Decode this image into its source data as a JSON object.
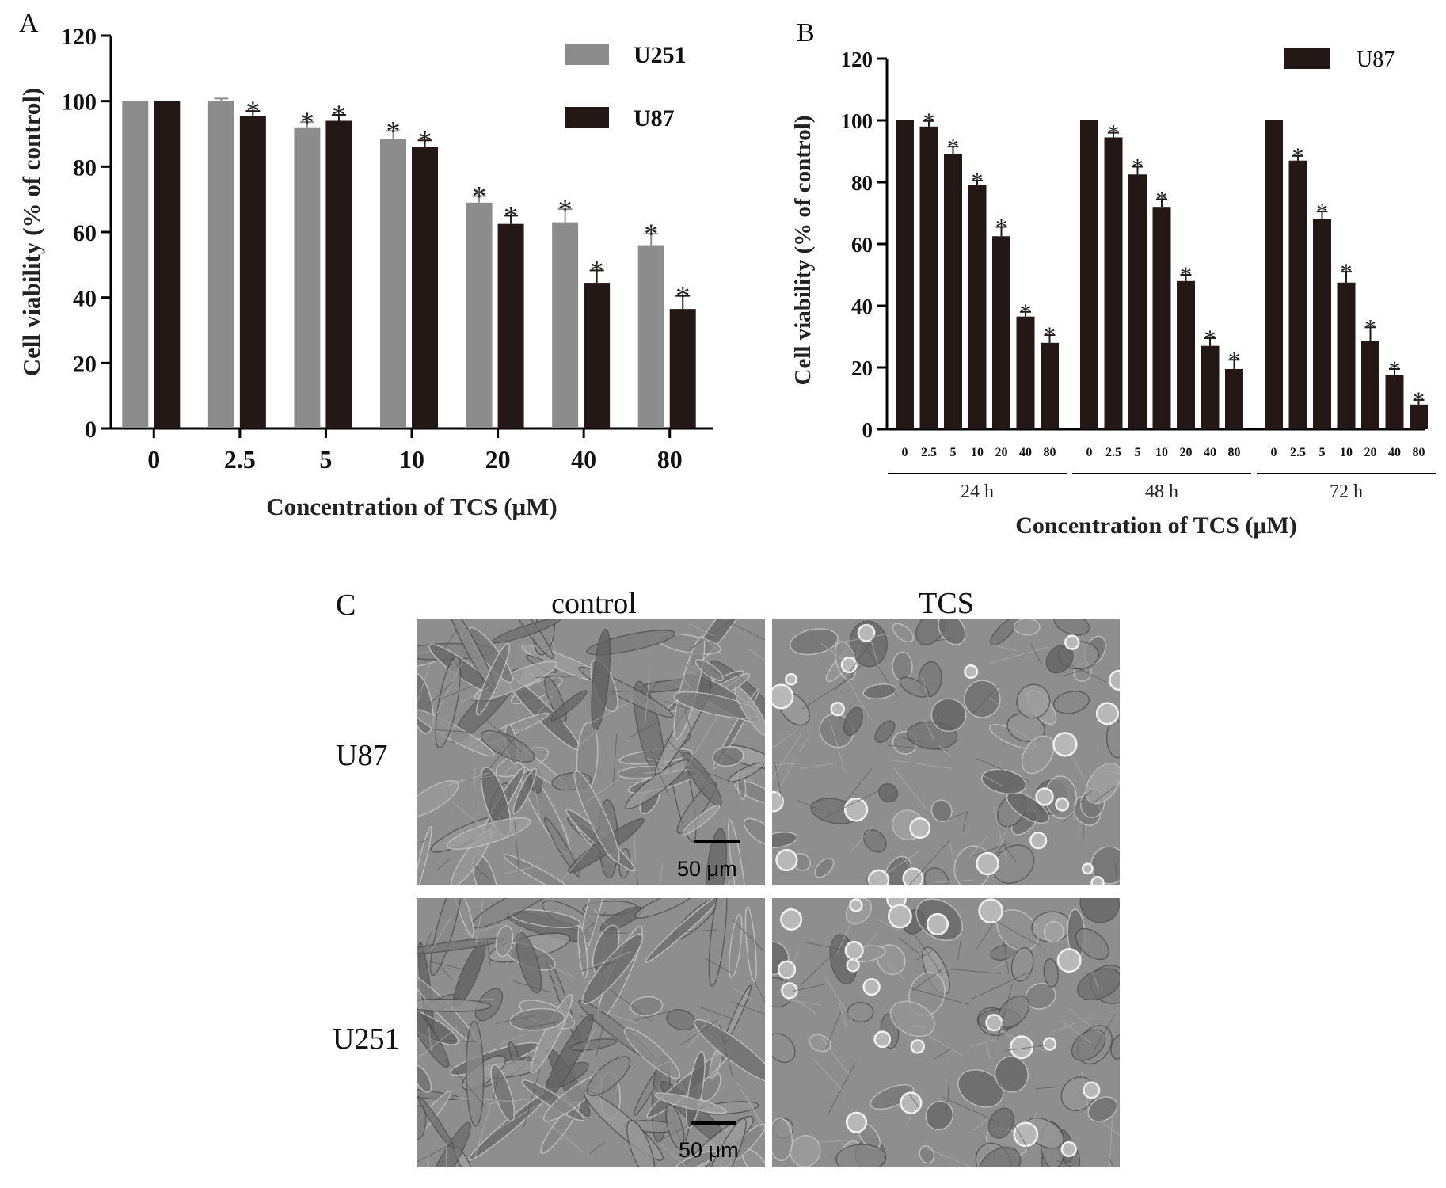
{
  "chart_data": [
    {
      "panel": "A",
      "type": "bar",
      "categories": [
        "0",
        "2.5",
        "5",
        "10",
        "20",
        "40",
        "80"
      ],
      "series": [
        {
          "name": "U251",
          "color": "#8c8c8c",
          "values": [
            100,
            100,
            92,
            88.5,
            69,
            63,
            56
          ],
          "errors": [
            0,
            0.8,
            1.6,
            2.4,
            2,
            4,
            3.5
          ],
          "significant": [
            false,
            false,
            true,
            true,
            true,
            true,
            true
          ]
        },
        {
          "name": "U87",
          "color": "#231815",
          "values": [
            100,
            95.5,
            94,
            86,
            62.5,
            44.5,
            36.5
          ],
          "errors": [
            0,
            1.5,
            1.8,
            2,
            2.5,
            3.8,
            4
          ],
          "significant": [
            false,
            true,
            true,
            true,
            true,
            true,
            true
          ]
        }
      ],
      "ylabel": "Cell viability (% of control)",
      "xlabel": "Concentration of TCS (μM)",
      "ylim": [
        0,
        120
      ],
      "yticks": [
        0,
        20,
        40,
        60,
        80,
        100,
        120
      ],
      "sig_marker": "*",
      "legend_position": "top-right"
    },
    {
      "panel": "B",
      "type": "bar",
      "categories": [
        "0",
        "2.5",
        "5",
        "10",
        "20",
        "40",
        "80"
      ],
      "groups": [
        "24 h",
        "48 h",
        "72 h"
      ],
      "series": [
        {
          "name": "U87",
          "color": "#231815",
          "values": [
            [
              100,
              98,
              89,
              79,
              62.5,
              36.5,
              28
            ],
            [
              100,
              94.5,
              82.5,
              72,
              48,
              27,
              19.5
            ],
            [
              100,
              87,
              68,
              47.5,
              28.5,
              17.5,
              8
            ]
          ],
          "errors": [
            [
              0,
              1.8,
              2.5,
              1.5,
              3,
              1.5,
              2.5
            ],
            [
              0,
              1.5,
              2.5,
              2.5,
              2,
              2.5,
              3
            ],
            [
              0,
              1.5,
              2.5,
              3.5,
              4.5,
              2,
              1.5
            ]
          ],
          "significant": [
            [
              false,
              true,
              true,
              true,
              true,
              true,
              true
            ],
            [
              false,
              true,
              true,
              true,
              true,
              true,
              true
            ],
            [
              false,
              true,
              true,
              true,
              true,
              true,
              true
            ]
          ]
        }
      ],
      "ylabel": "Cell viability (% of control)",
      "xlabel": "Concentration of TCS (μM)",
      "ylim": [
        0,
        120
      ],
      "yticks": [
        0,
        20,
        40,
        60,
        80,
        100,
        120
      ],
      "sig_marker": "*",
      "legend_position": "top-right"
    }
  ],
  "panel_c": {
    "letter": "C",
    "columns": [
      "control",
      "TCS"
    ],
    "rows": [
      "U87",
      "U251"
    ],
    "scale_label": "50 μm"
  }
}
